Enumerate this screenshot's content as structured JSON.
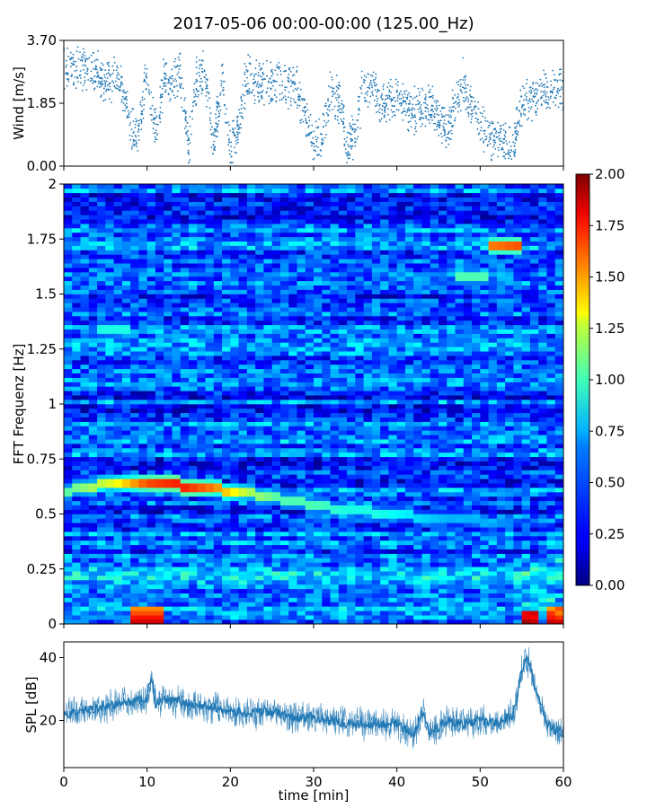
{
  "title": "2017-05-06 00:00-00:00 (125.00_Hz)",
  "chart_data": [
    {
      "type": "scatter",
      "panel": "wind",
      "ylabel": "Wind [m/s]",
      "xlim": [
        0,
        60
      ],
      "ylim": [
        0,
        3.7
      ],
      "yticks": [
        "0.00",
        "1.85",
        "3.70"
      ],
      "color": "#1f77b4",
      "trend": {
        "x": [
          0,
          2,
          4,
          5,
          6,
          7,
          8,
          9,
          10,
          11,
          12,
          13,
          14,
          15,
          16,
          17,
          18,
          19,
          20,
          21,
          22,
          24,
          26,
          28,
          30,
          31,
          32,
          33,
          34,
          35,
          36,
          37,
          38,
          40,
          42,
          44,
          46,
          48,
          49,
          50,
          51,
          52,
          53,
          54,
          55,
          56,
          58,
          60
        ],
        "y": [
          2.8,
          2.9,
          2.7,
          2.5,
          2.6,
          2.4,
          1.2,
          0.9,
          2.8,
          1.0,
          2.6,
          2.4,
          2.8,
          0.5,
          2.6,
          2.8,
          0.6,
          2.6,
          0.4,
          1.2,
          2.7,
          2.4,
          2.4,
          2.3,
          0.7,
          0.8,
          2.2,
          2.0,
          0.6,
          1.0,
          2.4,
          2.3,
          1.8,
          2.0,
          1.6,
          1.8,
          1.0,
          2.5,
          1.6,
          1.2,
          0.9,
          0.8,
          0.75,
          0.7,
          1.8,
          2.0,
          2.2,
          2.3
        ]
      }
    },
    {
      "type": "heatmap",
      "panel": "spectrogram",
      "ylabel": "FFT Frequenz [Hz]",
      "xlim": [
        0,
        60
      ],
      "ylim": [
        0,
        2
      ],
      "yticks": [
        "0",
        "0.25",
        "0.5",
        "0.75",
        "1",
        "1.25",
        "1.5",
        "1.75",
        "2"
      ],
      "colormap": "jet",
      "colorbar": {
        "range": [
          0,
          2
        ],
        "ticks": [
          "0.00",
          "0.25",
          "0.50",
          "0.75",
          "1.00",
          "1.25",
          "1.50",
          "1.75",
          "2.00"
        ]
      },
      "ridges": [
        {
          "x": [
            0,
            6,
            10,
            14,
            18,
            22,
            26,
            30,
            34,
            38,
            42,
            46,
            50,
            54
          ],
          "y": [
            0.6,
            0.65,
            0.645,
            0.63,
            0.615,
            0.6,
            0.57,
            0.54,
            0.52,
            0.505,
            0.49,
            0.48,
            0.47,
            0.465
          ],
          "intensity": [
            0.9,
            1.2,
            1.6,
            1.7,
            1.5,
            1.1,
            0.9,
            0.9,
            0.8,
            0.8,
            0.7,
            0.6,
            0.6,
            0.5
          ]
        },
        {
          "x": [
            51,
            55
          ],
          "y": [
            1.715,
            1.715
          ],
          "intensity": [
            1.5,
            1.6
          ]
        },
        {
          "x": [
            47,
            51
          ],
          "y": [
            1.585,
            1.585
          ],
          "intensity": [
            0.9,
            0.9
          ]
        },
        {
          "x": [
            4,
            8
          ],
          "y": [
            1.335,
            1.335
          ],
          "intensity": [
            0.8,
            0.8
          ]
        }
      ],
      "hotspots": [
        {
          "x": [
            8,
            12
          ],
          "y": [
            0,
            0.08
          ],
          "intensity": 1.9
        },
        {
          "x": [
            55,
            56.5
          ],
          "y": [
            0,
            0.06
          ],
          "intensity": 1.9
        },
        {
          "x": [
            58.5,
            60
          ],
          "y": [
            0,
            0.08
          ],
          "intensity": 1.8
        }
      ]
    },
    {
      "type": "line",
      "panel": "spl",
      "ylabel": "SPL [dB]",
      "xlabel": "time [min]",
      "xlim": [
        0,
        60
      ],
      "ylim": [
        5,
        45
      ],
      "yticks": [
        "20",
        "40"
      ],
      "xticks": [
        "0",
        "10",
        "20",
        "30",
        "40",
        "50",
        "60"
      ],
      "color": "#1f77b4",
      "x": [
        0,
        2,
        4,
        6,
        8,
        10,
        10.5,
        11,
        12,
        14,
        16,
        18,
        20,
        22,
        24,
        26,
        28,
        30,
        32,
        34,
        36,
        38,
        40,
        42,
        43,
        44,
        46,
        48,
        50,
        52,
        54,
        55,
        55.5,
        56,
        57,
        58,
        59,
        60
      ],
      "y": [
        22,
        23,
        24,
        25,
        26,
        27,
        35,
        25,
        27,
        26,
        25,
        24,
        23,
        22,
        23,
        22,
        21,
        21,
        20,
        19,
        19,
        19,
        19,
        15,
        23,
        16,
        20,
        19,
        20,
        19,
        22,
        36,
        40,
        37,
        27,
        19,
        17,
        16
      ]
    }
  ]
}
